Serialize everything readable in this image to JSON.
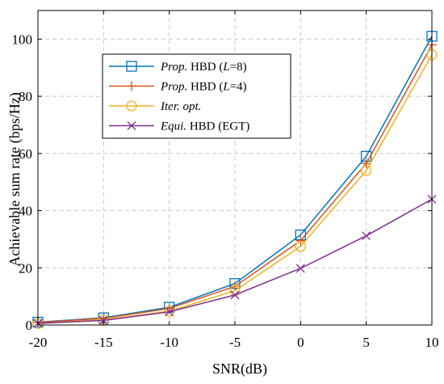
{
  "chart_data": {
    "type": "line",
    "xlabel": "SNR(dB)",
    "ylabel": "Achievable sum rate (bps/Hz)",
    "xlim": [
      -20,
      10
    ],
    "ylim": [
      0,
      110
    ],
    "xticks": [
      -20,
      -15,
      -10,
      -5,
      0,
      5,
      10
    ],
    "yticks": [
      0,
      20,
      40,
      60,
      80,
      100
    ],
    "x": [
      -20,
      -15,
      -10,
      -5,
      0,
      5,
      10
    ],
    "grid": true,
    "legend_position": "top-left",
    "series": [
      {
        "name": "Prop. HBD (L=8)",
        "legend_parts": [
          {
            "text": "Prop.",
            "italic": true
          },
          {
            "text": " HBD ("
          },
          {
            "text": "L",
            "italic": true
          },
          {
            "text": "=8)"
          }
        ],
        "color": "#0072BD",
        "marker": "square",
        "values": [
          1.0,
          2.5,
          6.2,
          14.5,
          31.5,
          59.0,
          101.0
        ]
      },
      {
        "name": "Prop. HBD (L=4)",
        "legend_parts": [
          {
            "text": "Prop.",
            "italic": true
          },
          {
            "text": " HBD ("
          },
          {
            "text": "L",
            "italic": true
          },
          {
            "text": "=4)"
          }
        ],
        "color": "#D95319",
        "marker": "plus",
        "values": [
          0.9,
          2.3,
          5.8,
          13.5,
          29.5,
          56.5,
          98.0
        ]
      },
      {
        "name": "Iter. opt.",
        "legend_parts": [
          {
            "text": "Iter. opt.",
            "italic": true
          }
        ],
        "color": "#EDB120",
        "marker": "circle",
        "values": [
          0.5,
          1.8,
          4.8,
          12.0,
          27.5,
          54.0,
          94.5
        ]
      },
      {
        "name": "Equi. HBD (EGT)",
        "legend_parts": [
          {
            "text": "Equi.",
            "italic": true
          },
          {
            "text": " HBD (EGT)"
          }
        ],
        "color": "#7E2F8E",
        "marker": "x",
        "values": [
          0.6,
          1.6,
          4.6,
          10.5,
          19.8,
          31.2,
          44.0
        ]
      }
    ]
  }
}
